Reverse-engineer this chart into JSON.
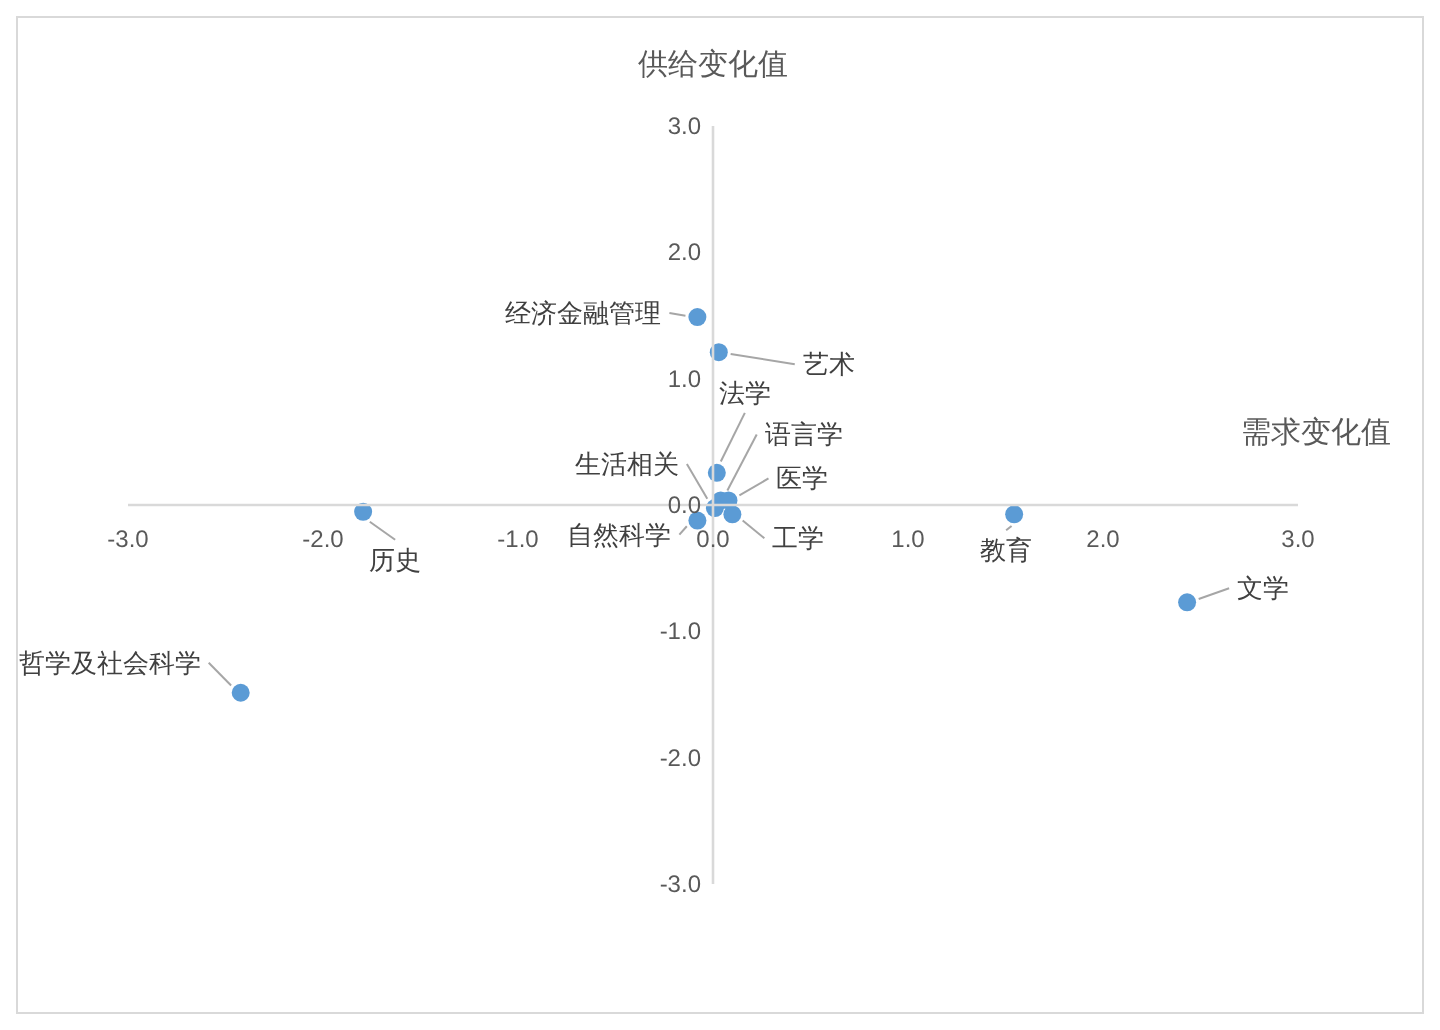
{
  "chart_data": {
    "type": "scatter",
    "xlabel": "需求变化值",
    "ylabel": "供给变化值",
    "xlim": [
      -3,
      3
    ],
    "ylim": [
      -3,
      3
    ],
    "xticks": [
      {
        "value": -3,
        "label": "-3.0"
      },
      {
        "value": -2,
        "label": "-2.0"
      },
      {
        "value": -1,
        "label": "-1.0"
      },
      {
        "value": 0,
        "label": "0.0"
      },
      {
        "value": 1,
        "label": "1.0"
      },
      {
        "value": 2,
        "label": "2.0"
      },
      {
        "value": 3,
        "label": "3.0"
      }
    ],
    "yticks": [
      {
        "value": -3,
        "label": "-3.0"
      },
      {
        "value": -2,
        "label": "-2.0"
      },
      {
        "value": -1,
        "label": "-1.0"
      },
      {
        "value": 0,
        "label": "0.0"
      },
      {
        "value": 1,
        "label": "1.0"
      },
      {
        "value": 2,
        "label": "2.0"
      },
      {
        "value": 3,
        "label": "3.0"
      }
    ],
    "grid": false,
    "legend": false,
    "marker": "circle",
    "series": [
      {
        "color": "#5b9bd5",
        "x": [
          -0.07,
          0.04,
          0.03,
          0.05,
          0.09,
          0.02,
          0.11,
          -0.07,
          -1.79,
          -2.42,
          1.56,
          2.45
        ],
        "values": [
          1.48,
          1.2,
          0.24,
          0.02,
          0.02,
          -0.04,
          -0.09,
          -0.14,
          -0.07,
          -1.51,
          -0.09,
          -0.79
        ],
        "value_labels": [
          "经济金融管理",
          "艺术",
          "法学",
          "语言学",
          "医学",
          "生活相关",
          "工学",
          "自然科学",
          "历史",
          "哲学及社会科学",
          "教育",
          "文学"
        ]
      }
    ]
  }
}
